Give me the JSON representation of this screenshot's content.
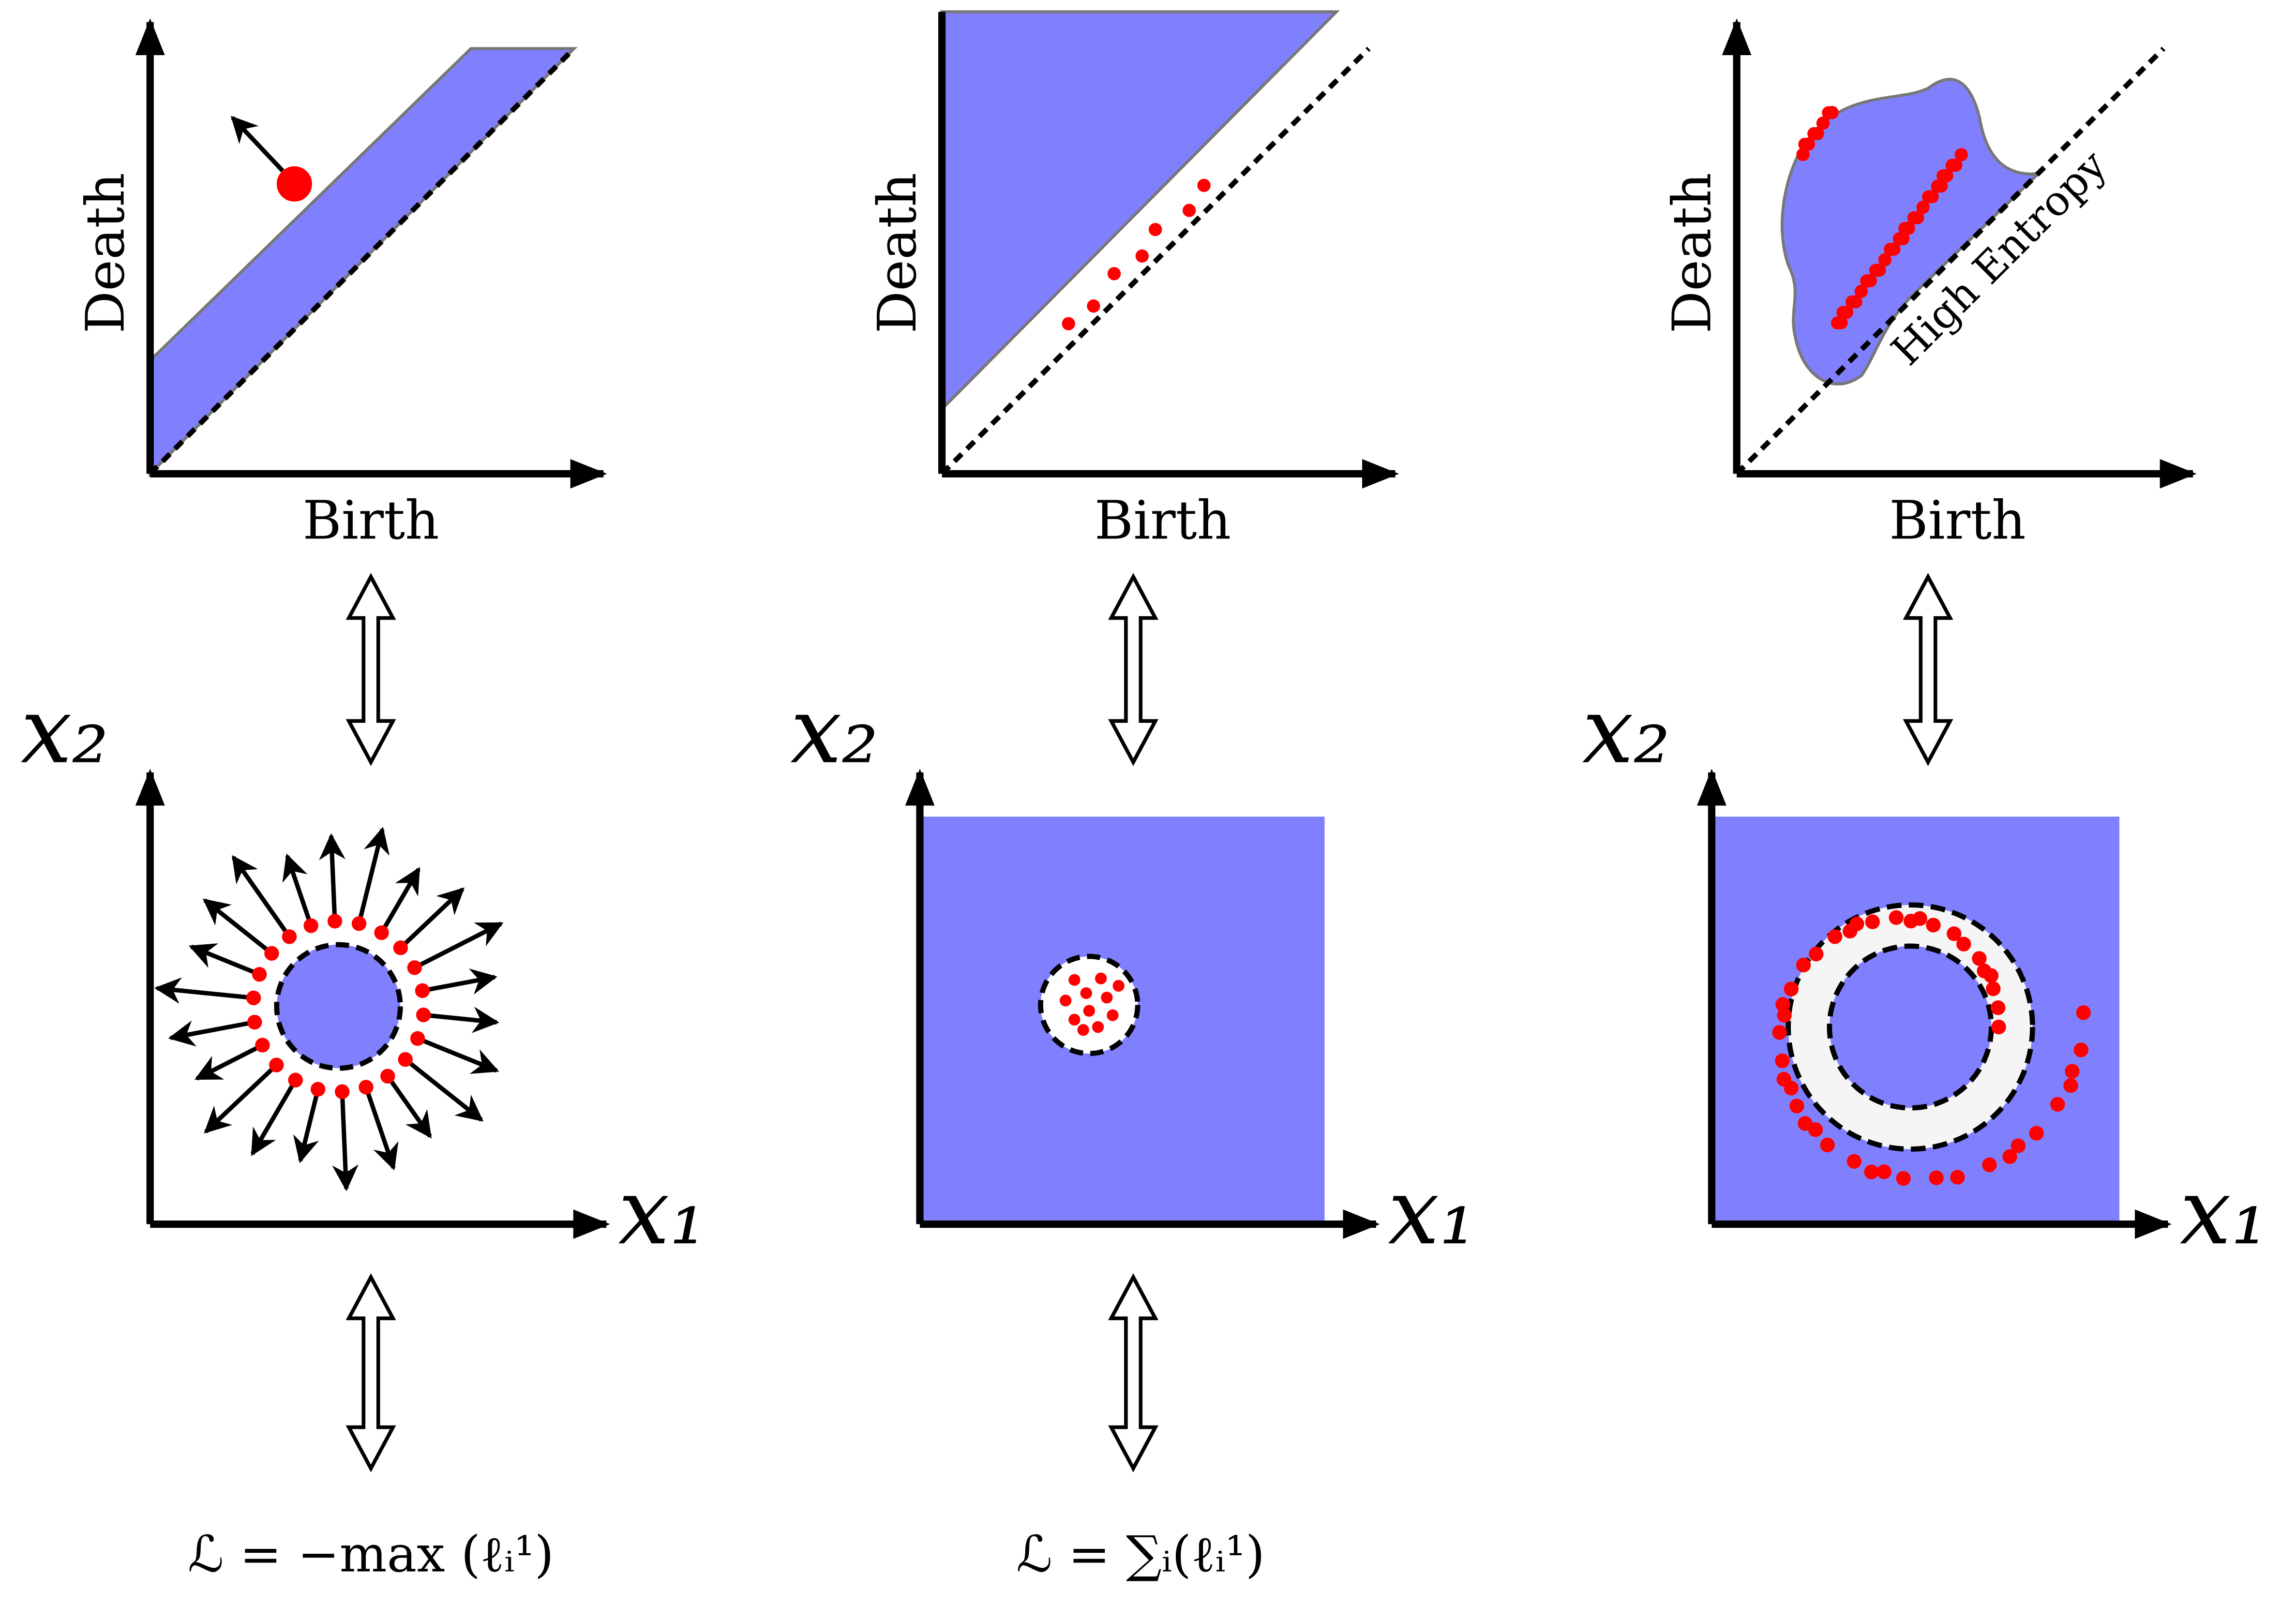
{
  "panels": [
    {
      "diagram": {
        "x_label": "Birth",
        "y_label": "Death"
      },
      "space": {
        "x_label": "x₁",
        "y_label": "x₂"
      },
      "loss": "ℒ = −max (ℓᵢ¹)"
    },
    {
      "diagram": {
        "x_label": "Birth",
        "y_label": "Death"
      },
      "space": {
        "x_label": "x₁",
        "y_label": "x₂"
      },
      "loss": "ℒ = ∑ᵢ(ℓᵢ¹)"
    },
    {
      "diagram": {
        "x_label": "Birth",
        "y_label": "Death",
        "annotation": "High Entropy"
      },
      "space": {
        "x_label": "x₁",
        "y_label": "x₂"
      }
    }
  ]
}
